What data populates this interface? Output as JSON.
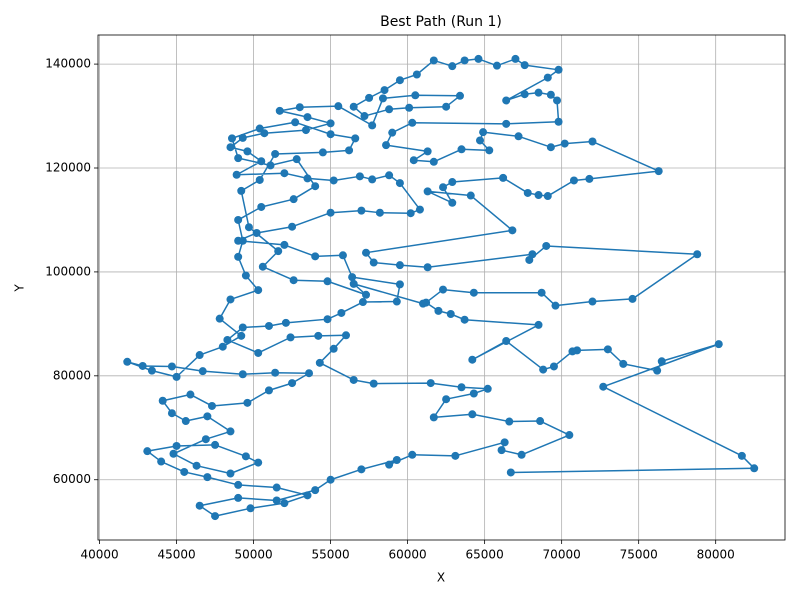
{
  "chart_data": {
    "type": "line",
    "title": "Best Path (Run 1)",
    "x_label": "X",
    "y_label": "Y",
    "xlim": [
      39900,
      84500
    ],
    "ylim": [
      48400,
      145600
    ],
    "xticks": [
      40000,
      45000,
      50000,
      55000,
      60000,
      65000,
      70000,
      75000,
      80000
    ],
    "yticks": [
      60000,
      80000,
      100000,
      120000,
      140000
    ],
    "grid": true,
    "markers": true,
    "x": [
      66700,
      82500,
      81700,
      72700,
      80200,
      76500,
      76200,
      74000,
      73000,
      71000,
      70700,
      69500,
      68800,
      66400,
      64200,
      68500,
      63700,
      62800,
      62000,
      61200,
      62300,
      64300,
      68700,
      69600,
      72000,
      74600,
      78800,
      69000,
      67900,
      68100,
      61300,
      59500,
      57800,
      57300,
      66800,
      64100,
      61300,
      62900,
      62300,
      62900,
      66200,
      67800,
      68500,
      69100,
      70800,
      71800,
      76300,
      72000,
      70200,
      69300,
      67200,
      64900,
      64700,
      65300,
      63500,
      61700,
      60400,
      61300,
      58600,
      59000,
      60300,
      66400,
      69800,
      69700,
      69300,
      68500,
      67600,
      66400,
      69100,
      69800,
      67600,
      67000,
      65800,
      64600,
      63700,
      62900,
      61700,
      60600,
      59500,
      58500,
      57500,
      56500,
      57200,
      58800,
      60100,
      62500,
      63400,
      60500,
      58400,
      57700,
      55500,
      53000,
      51700,
      53500,
      55000,
      53400,
      50700,
      49300,
      48500,
      49600,
      50500,
      48900,
      52000,
      53500,
      55200,
      56900,
      57700,
      58800,
      59500,
      60800,
      60200,
      58200,
      57000,
      55000,
      52500,
      50200,
      49000,
      52000,
      54000,
      55800,
      56400,
      59500,
      59300,
      57100,
      55700,
      54800,
      52100,
      51000,
      49300,
      48300,
      50300,
      52400,
      54200,
      56000,
      55200,
      54300,
      56500,
      57800,
      61500,
      63500,
      65200,
      64300,
      62500,
      61700,
      64200,
      66600,
      68600,
      70500,
      67400,
      66100,
      66300,
      63100,
      60300,
      58800,
      59300,
      57000,
      55000,
      54000,
      51500,
      49000,
      46500,
      47500,
      49800,
      52000,
      53500,
      51500,
      49000,
      47000,
      45500,
      44000,
      43100,
      45000,
      47500,
      49500,
      50300,
      48500,
      46300,
      44800,
      46900,
      48500,
      47000,
      45600,
      44700,
      44100,
      45900,
      47300,
      49600,
      51000,
      52500,
      53600,
      51400,
      49300,
      46700,
      44700,
      42800,
      41800,
      43400,
      45000,
      46500,
      48000,
      49200,
      47800,
      48500,
      50300,
      49500,
      49000,
      49300,
      49000,
      50500,
      52600,
      54000,
      52800,
      51100,
      49000,
      48600,
      50400,
      52700,
      55000,
      56600,
      56200,
      54500,
      51400,
      50400,
      49200,
      49700,
      51600,
      50600,
      52600,
      54800,
      57300,
      56500,
      61000
    ],
    "series": [
      {
        "color": "#1f77b4",
        "values": [
          61400,
          62200,
          64600,
          77900,
          86100,
          82800,
          81000,
          82300,
          85100,
          84900,
          84700,
          81800,
          81200,
          86700,
          83100,
          89800,
          90800,
          91900,
          92500,
          94100,
          96600,
          96000,
          96000,
          93500,
          94300,
          94800,
          103400,
          105000,
          102300,
          103400,
          100900,
          101300,
          101800,
          103700,
          108000,
          114700,
          115500,
          113300,
          116300,
          117300,
          118100,
          115200,
          114800,
          114600,
          117600,
          117900,
          119400,
          125100,
          124700,
          124000,
          126100,
          126900,
          125300,
          123400,
          123600,
          121200,
          121500,
          123200,
          124400,
          126800,
          128700,
          128500,
          128900,
          133000,
          134100,
          134500,
          134200,
          133000,
          137400,
          138900,
          139800,
          141000,
          139700,
          141000,
          140700,
          139600,
          140700,
          138000,
          136900,
          135000,
          133500,
          131800,
          130000,
          131300,
          131600,
          131800,
          133900,
          134000,
          133400,
          128200,
          131900,
          131700,
          131000,
          129800,
          128600,
          127300,
          126700,
          125800,
          124000,
          123200,
          121300,
          118700,
          119000,
          118000,
          117600,
          118400,
          117800,
          118600,
          117100,
          112000,
          111300,
          111400,
          111800,
          111400,
          108700,
          107500,
          106000,
          105200,
          103000,
          103200,
          99000,
          97600,
          94300,
          94200,
          92100,
          90900,
          90200,
          89600,
          89300,
          86900,
          84400,
          87400,
          87700,
          87800,
          85200,
          82500,
          79200,
          78500,
          78600,
          77800,
          77500,
          76600,
          75500,
          72000,
          72600,
          71200,
          71300,
          68600,
          64800,
          65700,
          67200,
          64600,
          64800,
          62900,
          63800,
          62000,
          60000,
          58000,
          56000,
          56500,
          55000,
          53000,
          54500,
          55500,
          57000,
          58500,
          59000,
          60500,
          61500,
          63500,
          65500,
          66500,
          66700,
          64500,
          63300,
          61200,
          62700,
          65000,
          67800,
          69300,
          72200,
          71300,
          72800,
          75200,
          76400,
          74200,
          74800,
          77200,
          78600,
          80500,
          80600,
          80300,
          80900,
          81800,
          81900,
          82700,
          81000,
          79800,
          84000,
          85600,
          87700,
          91000,
          94700,
          96500,
          99300,
          102900,
          106000,
          110000,
          112500,
          114000,
          116500,
          121700,
          120500,
          121900,
          125700,
          127600,
          128800,
          126500,
          125700,
          123400,
          123000,
          122700,
          117700,
          115600,
          108600,
          104000,
          101000,
          98400,
          98200,
          95600,
          97700,
          93900
        ]
      }
    ]
  }
}
